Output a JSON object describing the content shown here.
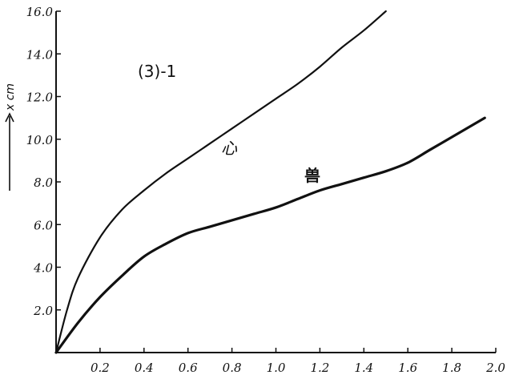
{
  "chart_data": {
    "type": "line",
    "title": "",
    "annotation": "(3)-1",
    "xlabel": "",
    "ylabel": "x cm",
    "xlim": [
      0,
      2.0
    ],
    "ylim": [
      0,
      16.0
    ],
    "grid": false,
    "x_ticks": [
      "0.2",
      "0.4",
      "0.6",
      "0.8",
      "1.0",
      "1.2",
      "1.4",
      "1.6",
      "1.8",
      "2.0"
    ],
    "y_ticks": [
      "2.0",
      "4.0",
      "6.0",
      "8.0",
      "10.0",
      "12.0",
      "14.0",
      "16.0"
    ],
    "series": [
      {
        "name": "心",
        "x": [
          0,
          0.05,
          0.1,
          0.2,
          0.3,
          0.4,
          0.5,
          0.6,
          0.7,
          0.8,
          0.9,
          1.0,
          1.1,
          1.2,
          1.3,
          1.4,
          1.5
        ],
        "y": [
          0,
          2.0,
          3.5,
          5.4,
          6.7,
          7.6,
          8.4,
          9.1,
          9.8,
          10.5,
          11.2,
          11.9,
          12.6,
          13.4,
          14.3,
          15.1,
          16.0
        ]
      },
      {
        "name": "兽",
        "x": [
          0,
          0.1,
          0.2,
          0.3,
          0.4,
          0.5,
          0.6,
          0.7,
          0.8,
          0.9,
          1.0,
          1.1,
          1.2,
          1.3,
          1.4,
          1.5,
          1.6,
          1.7,
          1.8,
          1.9,
          1.95
        ],
        "y": [
          0,
          1.4,
          2.6,
          3.6,
          4.5,
          5.1,
          5.6,
          5.9,
          6.2,
          6.5,
          6.8,
          7.2,
          7.6,
          7.9,
          8.2,
          8.5,
          8.9,
          9.5,
          10.1,
          10.7,
          11.0
        ]
      }
    ]
  }
}
